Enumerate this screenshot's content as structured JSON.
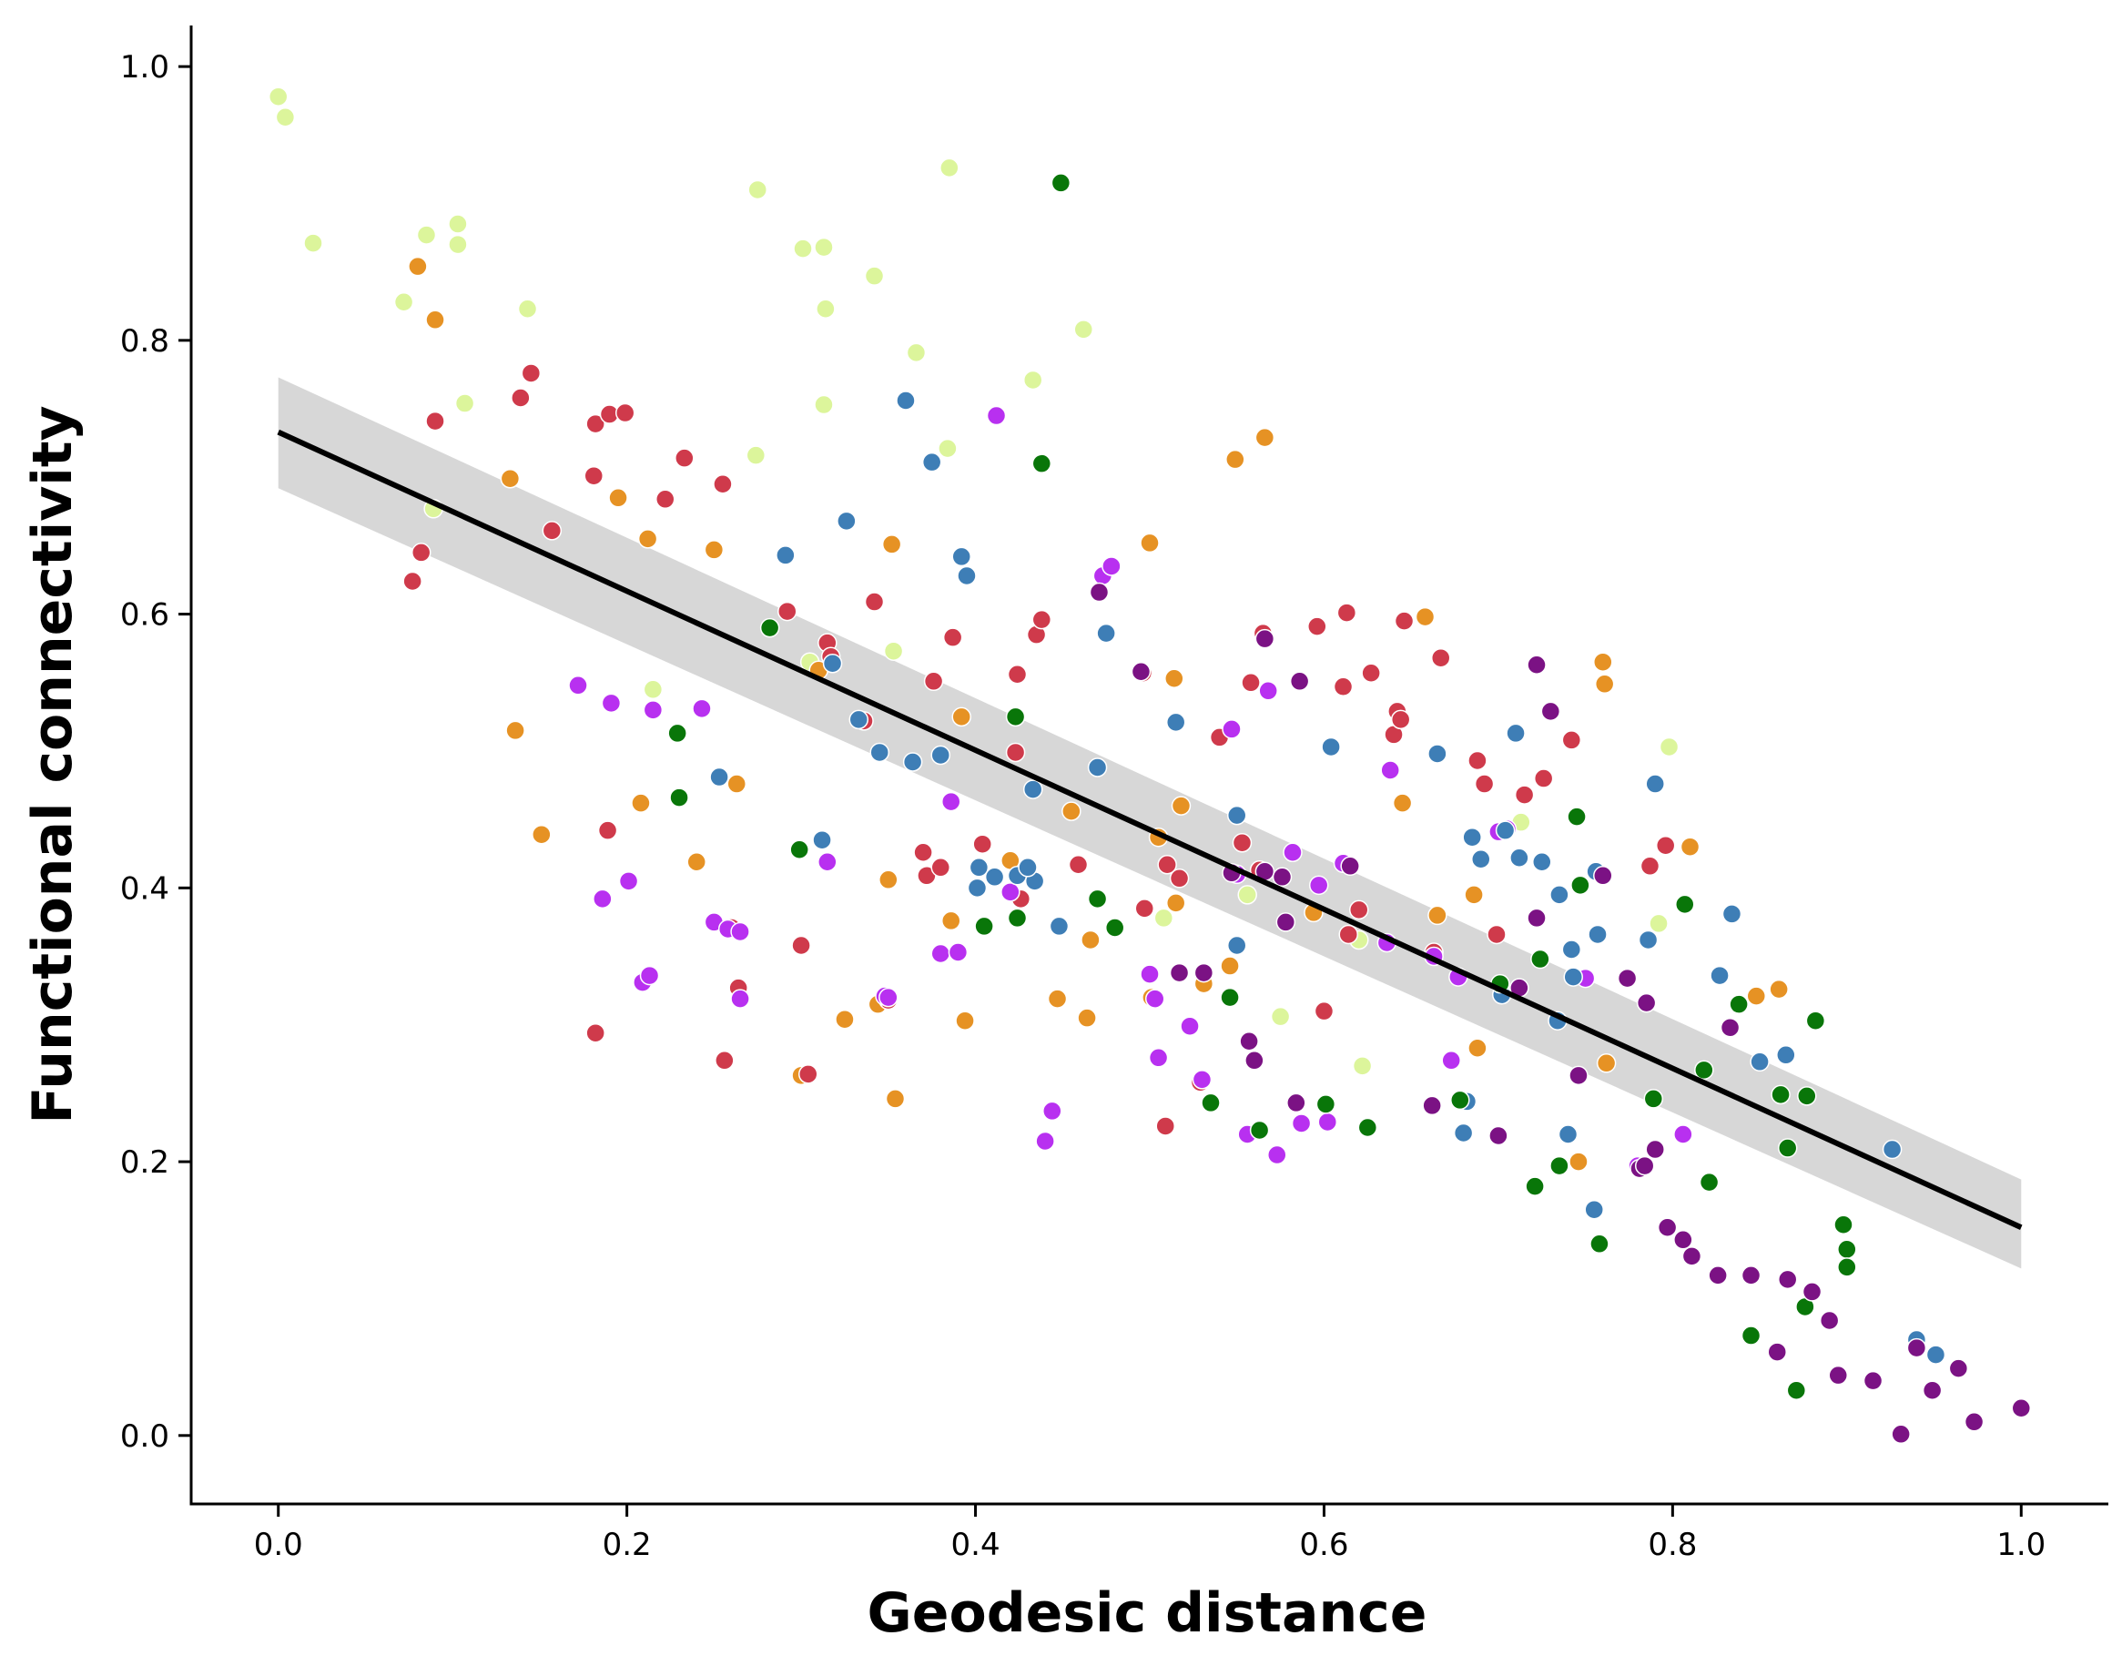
{
  "chart_data": {
    "type": "scatter",
    "title": "",
    "xlabel": "Geodesic distance",
    "ylabel": "Functional connectivity",
    "xlim": [
      -0.05,
      1.05
    ],
    "ylim": [
      -0.05,
      1.03
    ],
    "xticks": [
      "0.0",
      "0.2",
      "0.4",
      "0.6",
      "0.8",
      "1.0"
    ],
    "xtick_values": [
      0.0,
      0.2,
      0.4,
      0.6,
      0.8,
      1.0
    ],
    "yticks": [
      "0.0",
      "0.2",
      "0.4",
      "0.6",
      "0.8",
      "1.0"
    ],
    "ytick_values": [
      0.0,
      0.2,
      0.4,
      0.6,
      0.8,
      1.0
    ],
    "grid": false,
    "regression": {
      "start": [
        0.0,
        0.733
      ],
      "end": [
        1.0,
        0.152
      ],
      "ci_start": [
        0.692,
        0.773
      ],
      "ci_end": [
        0.122,
        0.187
      ],
      "line_color": "#000000",
      "band_color": "#d3d3d3"
    },
    "series": [
      {
        "color": "#dcf59b",
        "x": [
          0.0,
          0.004,
          0.02,
          0.072,
          0.085,
          0.103,
          0.103,
          0.107,
          0.143,
          0.275,
          0.301,
          0.313,
          0.314,
          0.342,
          0.385,
          0.462,
          0.433,
          0.366,
          0.274,
          0.313,
          0.384,
          0.089,
          0.353,
          0.305,
          0.508,
          0.556,
          0.575,
          0.62,
          0.622,
          0.713,
          0.792,
          0.798,
          0.215
        ],
        "y": [
          0.978,
          0.963,
          0.871,
          0.828,
          0.877,
          0.885,
          0.87,
          0.754,
          0.823,
          0.91,
          0.867,
          0.868,
          0.823,
          0.847,
          0.926,
          0.808,
          0.771,
          0.791,
          0.716,
          0.753,
          0.721,
          0.677,
          0.573,
          0.565,
          0.378,
          0.395,
          0.306,
          0.362,
          0.27,
          0.448,
          0.374,
          0.503,
          0.545
        ]
      },
      {
        "color": "#e69224",
        "x": [
          0.08,
          0.09,
          0.133,
          0.136,
          0.151,
          0.195,
          0.208,
          0.212,
          0.24,
          0.25,
          0.263,
          0.31,
          0.3,
          0.325,
          0.344,
          0.35,
          0.354,
          0.352,
          0.386,
          0.392,
          0.394,
          0.42,
          0.447,
          0.455,
          0.464,
          0.466,
          0.5,
          0.505,
          0.514,
          0.515,
          0.518,
          0.531,
          0.546,
          0.549,
          0.566,
          0.594,
          0.645,
          0.658,
          0.665,
          0.686,
          0.688,
          0.746,
          0.76,
          0.761,
          0.762,
          0.81,
          0.848,
          0.861,
          0.501
        ],
        "y": [
          0.854,
          0.815,
          0.699,
          0.515,
          0.439,
          0.685,
          0.462,
          0.655,
          0.419,
          0.647,
          0.476,
          0.559,
          0.263,
          0.304,
          0.315,
          0.406,
          0.246,
          0.651,
          0.376,
          0.525,
          0.303,
          0.42,
          0.319,
          0.456,
          0.305,
          0.362,
          0.652,
          0.437,
          0.553,
          0.389,
          0.46,
          0.33,
          0.343,
          0.713,
          0.729,
          0.382,
          0.462,
          0.598,
          0.38,
          0.395,
          0.283,
          0.2,
          0.565,
          0.549,
          0.272,
          0.43,
          0.321,
          0.326,
          0.32
        ]
      },
      {
        "color": "#cf3a4b",
        "x": [
          0.077,
          0.082,
          0.09,
          0.139,
          0.145,
          0.157,
          0.181,
          0.182,
          0.182,
          0.189,
          0.19,
          0.199,
          0.222,
          0.233,
          0.255,
          0.256,
          0.26,
          0.292,
          0.3,
          0.304,
          0.315,
          0.317,
          0.336,
          0.342,
          0.35,
          0.37,
          0.372,
          0.376,
          0.38,
          0.387,
          0.404,
          0.423,
          0.424,
          0.426,
          0.435,
          0.438,
          0.459,
          0.496,
          0.497,
          0.509,
          0.51,
          0.517,
          0.529,
          0.54,
          0.553,
          0.558,
          0.563,
          0.565,
          0.596,
          0.6,
          0.611,
          0.613,
          0.614,
          0.62,
          0.627,
          0.64,
          0.642,
          0.644,
          0.646,
          0.663,
          0.667,
          0.688,
          0.692,
          0.699,
          0.715,
          0.726,
          0.742,
          0.787,
          0.796,
          0.264
        ],
        "y": [
          0.624,
          0.645,
          0.741,
          0.758,
          0.776,
          0.661,
          0.701,
          0.739,
          0.294,
          0.442,
          0.746,
          0.747,
          0.684,
          0.714,
          0.695,
          0.274,
          0.371,
          0.602,
          0.358,
          0.264,
          0.579,
          0.569,
          0.522,
          0.609,
          0.318,
          0.426,
          0.409,
          0.551,
          0.415,
          0.583,
          0.432,
          0.499,
          0.556,
          0.392,
          0.585,
          0.596,
          0.417,
          0.557,
          0.385,
          0.226,
          0.417,
          0.407,
          0.258,
          0.51,
          0.433,
          0.55,
          0.413,
          0.586,
          0.591,
          0.31,
          0.547,
          0.601,
          0.366,
          0.384,
          0.557,
          0.512,
          0.529,
          0.523,
          0.595,
          0.353,
          0.568,
          0.493,
          0.476,
          0.366,
          0.468,
          0.48,
          0.508,
          0.416,
          0.431,
          0.327
        ]
      },
      {
        "color": "#b830f0",
        "x": [
          0.172,
          0.191,
          0.186,
          0.201,
          0.209,
          0.213,
          0.215,
          0.243,
          0.25,
          0.258,
          0.265,
          0.265,
          0.315,
          0.348,
          0.35,
          0.38,
          0.386,
          0.39,
          0.412,
          0.42,
          0.44,
          0.444,
          0.473,
          0.478,
          0.5,
          0.503,
          0.505,
          0.523,
          0.53,
          0.547,
          0.55,
          0.556,
          0.568,
          0.573,
          0.582,
          0.587,
          0.597,
          0.602,
          0.611,
          0.636,
          0.638,
          0.663,
          0.673,
          0.677,
          0.7,
          0.705,
          0.75,
          0.78,
          0.806
        ],
        "y": [
          0.548,
          0.535,
          0.392,
          0.405,
          0.331,
          0.336,
          0.53,
          0.531,
          0.375,
          0.37,
          0.368,
          0.319,
          0.419,
          0.321,
          0.32,
          0.352,
          0.463,
          0.353,
          0.745,
          0.397,
          0.215,
          0.237,
          0.628,
          0.635,
          0.337,
          0.319,
          0.276,
          0.299,
          0.26,
          0.516,
          0.41,
          0.22,
          0.544,
          0.205,
          0.426,
          0.228,
          0.402,
          0.229,
          0.418,
          0.36,
          0.486,
          0.35,
          0.274,
          0.335,
          0.441,
          0.443,
          0.334,
          0.197,
          0.22
        ]
      },
      {
        "color": "#3e7eb6",
        "x": [
          0.253,
          0.291,
          0.312,
          0.318,
          0.326,
          0.333,
          0.345,
          0.36,
          0.364,
          0.375,
          0.38,
          0.392,
          0.395,
          0.401,
          0.402,
          0.411,
          0.424,
          0.433,
          0.434,
          0.448,
          0.47,
          0.475,
          0.515,
          0.55,
          0.55,
          0.604,
          0.665,
          0.68,
          0.682,
          0.685,
          0.69,
          0.702,
          0.704,
          0.71,
          0.712,
          0.725,
          0.734,
          0.735,
          0.74,
          0.743,
          0.755,
          0.756,
          0.757,
          0.786,
          0.79,
          0.827,
          0.834,
          0.85,
          0.865,
          0.926,
          0.94,
          0.951,
          0.742,
          0.43
        ],
        "y": [
          0.481,
          0.643,
          0.435,
          0.564,
          0.668,
          0.523,
          0.499,
          0.756,
          0.492,
          0.711,
          0.497,
          0.642,
          0.628,
          0.4,
          0.415,
          0.408,
          0.409,
          0.472,
          0.405,
          0.372,
          0.488,
          0.586,
          0.521,
          0.453,
          0.358,
          0.503,
          0.498,
          0.221,
          0.244,
          0.437,
          0.421,
          0.322,
          0.442,
          0.513,
          0.422,
          0.419,
          0.303,
          0.395,
          0.22,
          0.335,
          0.165,
          0.412,
          0.366,
          0.362,
          0.476,
          0.336,
          0.381,
          0.273,
          0.278,
          0.209,
          0.07,
          0.059,
          0.355,
          0.415
        ]
      },
      {
        "color": "#097609",
        "x": [
          0.229,
          0.23,
          0.282,
          0.299,
          0.405,
          0.423,
          0.424,
          0.449,
          0.47,
          0.48,
          0.535,
          0.546,
          0.563,
          0.601,
          0.625,
          0.678,
          0.721,
          0.724,
          0.735,
          0.745,
          0.747,
          0.758,
          0.789,
          0.807,
          0.818,
          0.821,
          0.838,
          0.845,
          0.862,
          0.866,
          0.871,
          0.876,
          0.882,
          0.898,
          0.9,
          0.9,
          0.877,
          0.438,
          0.701
        ],
        "y": [
          0.513,
          0.466,
          0.59,
          0.428,
          0.372,
          0.525,
          0.378,
          0.915,
          0.392,
          0.371,
          0.243,
          0.32,
          0.223,
          0.242,
          0.225,
          0.245,
          0.182,
          0.348,
          0.197,
          0.452,
          0.402,
          0.14,
          0.246,
          0.388,
          0.267,
          0.185,
          0.315,
          0.073,
          0.249,
          0.21,
          0.033,
          0.094,
          0.303,
          0.154,
          0.136,
          0.123,
          0.248,
          0.71,
          0.33
        ]
      },
      {
        "color": "#7b1284",
        "x": [
          0.471,
          0.495,
          0.517,
          0.531,
          0.557,
          0.56,
          0.566,
          0.576,
          0.578,
          0.584,
          0.586,
          0.615,
          0.662,
          0.7,
          0.712,
          0.722,
          0.73,
          0.746,
          0.76,
          0.774,
          0.781,
          0.784,
          0.785,
          0.79,
          0.797,
          0.806,
          0.811,
          0.826,
          0.833,
          0.845,
          0.86,
          0.866,
          0.88,
          0.89,
          0.895,
          0.915,
          0.931,
          0.94,
          0.949,
          0.964,
          0.973,
          1.0,
          0.722,
          0.547,
          0.566
        ],
        "y": [
          0.616,
          0.558,
          0.338,
          0.338,
          0.288,
          0.274,
          0.582,
          0.408,
          0.375,
          0.243,
          0.551,
          0.416,
          0.241,
          0.219,
          0.327,
          0.563,
          0.529,
          0.263,
          0.409,
          0.334,
          0.195,
          0.197,
          0.316,
          0.209,
          0.152,
          0.143,
          0.131,
          0.117,
          0.298,
          0.117,
          0.061,
          0.114,
          0.105,
          0.084,
          0.044,
          0.04,
          0.001,
          0.064,
          0.033,
          0.049,
          0.01,
          0.02,
          0.378,
          0.411,
          0.412
        ]
      }
    ]
  }
}
